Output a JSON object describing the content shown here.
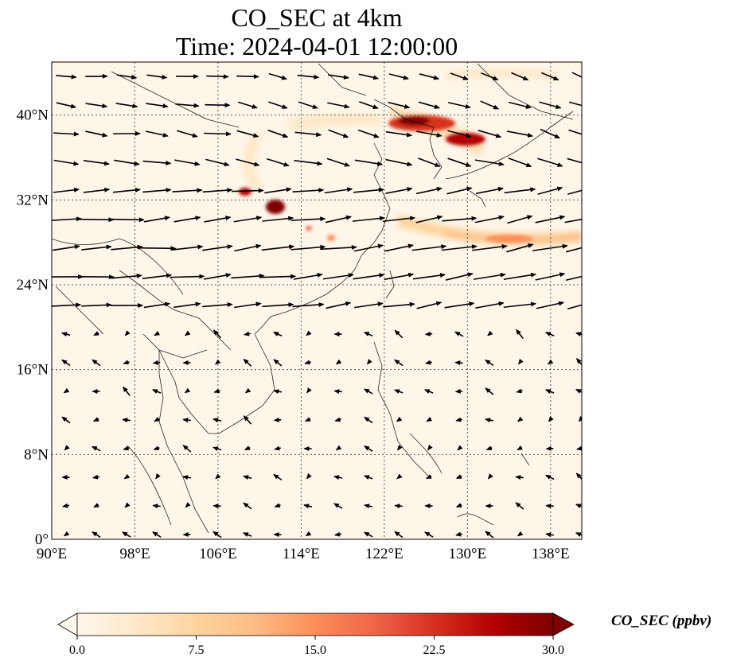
{
  "title": {
    "line1": "CO_SEC at 4km",
    "line2": "Time: 2024-04-01 12:00:00"
  },
  "map": {
    "lon_range": [
      90,
      141
    ],
    "lat_range": [
      0,
      45
    ],
    "lon_ticks": [
      "90°E",
      "98°E",
      "106°E",
      "114°E",
      "122°E",
      "130°E",
      "138°E"
    ],
    "lat_ticks": [
      "0°",
      "8°N",
      "16°N",
      "24°N",
      "32°N",
      "40°N"
    ],
    "gridlines": "dotted",
    "vectors": "wind"
  },
  "colorbar": {
    "label": "CO_SEC (ppbv)",
    "ticks": [
      "0.0",
      "7.5",
      "15.0",
      "22.5",
      "30.0"
    ],
    "range": [
      0,
      30
    ],
    "colormap": "OrRd",
    "extend": "both",
    "colors": [
      "#fff7ec",
      "#fee8c8",
      "#fdd49e",
      "#fdbb84",
      "#fc8d59",
      "#ef6548",
      "#d7301f",
      "#b30000",
      "#7f0000"
    ]
  }
}
